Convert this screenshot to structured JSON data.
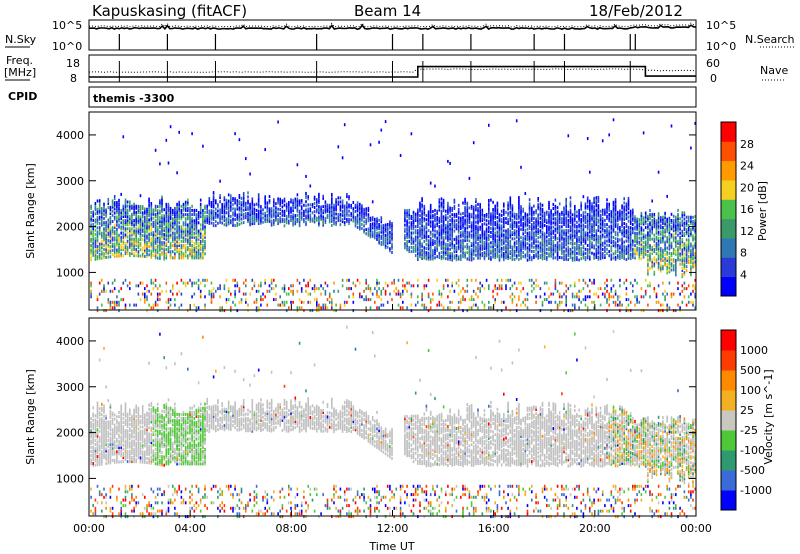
{
  "header": {
    "station": "Kapuskasing (fitACF)",
    "beam": "Beam 14",
    "date": "18/Feb/2012"
  },
  "panel_labels": {
    "nsky": "N.Sky",
    "nsearch": "N.Search",
    "freq_line1": "Freq.",
    "freq_line2": "[MHz]",
    "nave": "Nave",
    "cpid": "CPID",
    "cpid_value": "themis -3300"
  },
  "small_axes": {
    "noise_left_ticks": [
      "10^5",
      "10^0"
    ],
    "noise_right_ticks": [
      "10^5",
      "10^0"
    ],
    "freq_left_ticks": [
      "18",
      "8"
    ],
    "freq_right_ticks": [
      "60",
      "0"
    ]
  },
  "colors": {
    "power_scale": [
      "#0000ff",
      "#2a3bd8",
      "#2f78b4",
      "#3a9a6a",
      "#49c14a",
      "#f5d020",
      "#ff9a00",
      "#ff5000",
      "#ff0000"
    ],
    "velocity_scale": [
      "#0000ff",
      "#3a6bd6",
      "#2f9a70",
      "#4ec836",
      "#c8c8c0",
      "#f3b020",
      "#ff8a00",
      "#ff3c00",
      "#ff0000"
    ],
    "ground_scatter": "#c0c0c0"
  },
  "chart_data": [
    {
      "type": "line",
      "panel": "noise",
      "series": [
        {
          "name": "N.Sky",
          "style": "solid"
        },
        {
          "name": "N.Search",
          "style": "dotted"
        }
      ],
      "ylim_log10": [
        0,
        5
      ],
      "x": [
        "00:00",
        "04:00",
        "08:00",
        "12:00",
        "16:00",
        "20:00",
        "00:00"
      ]
    },
    {
      "type": "line",
      "panel": "frequency",
      "series": [
        {
          "name": "Freq. [MHz]",
          "style": "solid",
          "x_hours": [
            0,
            13,
            13,
            22,
            22,
            24
          ],
          "values": [
            8.5,
            8.5,
            14,
            14,
            9,
            9
          ]
        },
        {
          "name": "Nave",
          "style": "dotted",
          "x_hours": [
            0,
            13,
            13,
            24
          ],
          "values": [
            20,
            20,
            28,
            24
          ]
        }
      ],
      "ylim_left": [
        8,
        18
      ],
      "ylim_right": [
        0,
        60
      ]
    },
    {
      "type": "heatmap",
      "panel": "power",
      "xlabel": "",
      "ylabel": "Slant Range [km]",
      "colorbar_label": "Power [dB]",
      "colorbar_ticks": [
        "28",
        "24",
        "20",
        "16",
        "12",
        "8",
        "4"
      ],
      "x_ticks": [
        "00:00",
        "04:00",
        "08:00",
        "12:00",
        "16:00",
        "20:00",
        "00:00"
      ],
      "y_ticks": [
        "4000",
        "3000",
        "2000",
        "1000"
      ],
      "xlim_hours": [
        0,
        24
      ],
      "ylim_km": [
        180,
        4500
      ]
    },
    {
      "type": "heatmap",
      "panel": "velocity",
      "xlabel": "Time UT",
      "ylabel": "Slant Range [km]",
      "colorbar_label": "Velocity [m s^-1]",
      "colorbar_ticks": [
        "1000",
        "500",
        "100",
        "25",
        "-25",
        "-100",
        "-500",
        "-1000"
      ],
      "x_ticks": [
        "00:00",
        "04:00",
        "08:00",
        "12:00",
        "16:00",
        "20:00",
        "00:00"
      ],
      "y_ticks": [
        "4000",
        "3000",
        "2000",
        "1000"
      ],
      "xlim_hours": [
        0,
        24
      ],
      "ylim_km": [
        180,
        4500
      ]
    }
  ]
}
